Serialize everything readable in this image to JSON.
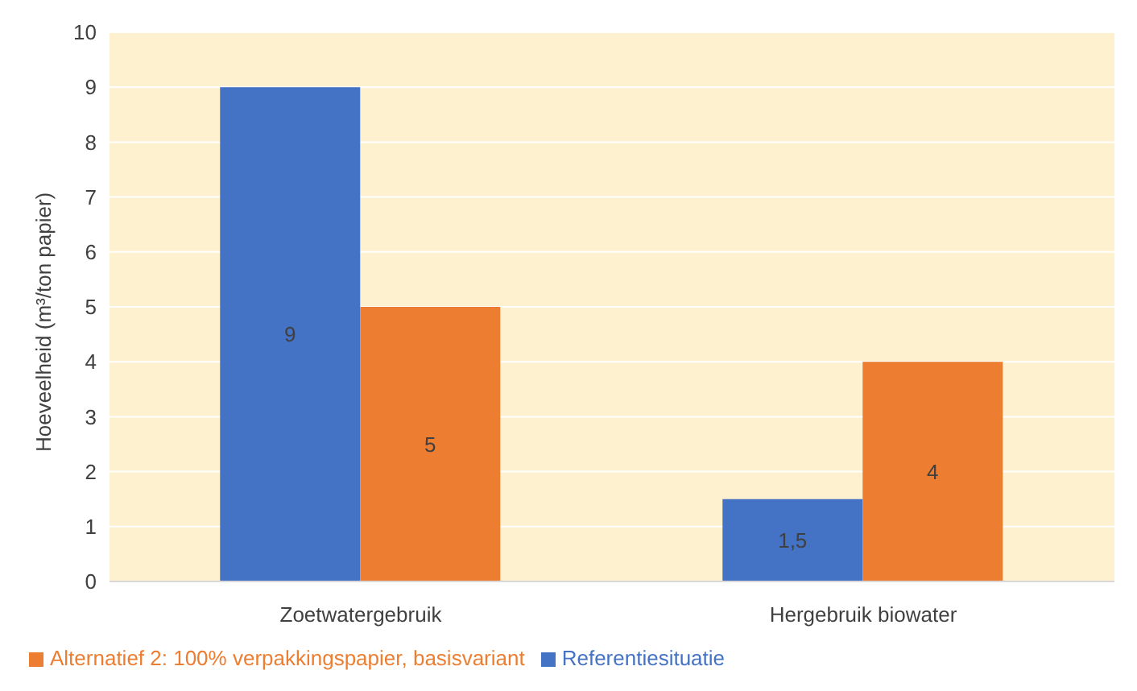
{
  "chart_data": {
    "type": "bar",
    "ylabel": "Hoeveelheid (m³/ton papier)",
    "categories": [
      "Zoetwatergebruik",
      "Hergebruik biowater"
    ],
    "series": [
      {
        "name": "Referentiesituatie",
        "color": "#4472c4",
        "values": [
          9,
          1.5
        ],
        "value_labels": [
          "9",
          "1,5"
        ]
      },
      {
        "name": "Alternatief 2: 100% verpakkingspapier, basisvariant",
        "color": "#ed7d31",
        "values": [
          5,
          4
        ],
        "value_labels": [
          "5",
          "4"
        ]
      }
    ],
    "ylim": [
      0,
      10
    ],
    "yticks": [
      0,
      1,
      2,
      3,
      4,
      5,
      6,
      7,
      8,
      9,
      10
    ],
    "grid": "y",
    "legend": "bottom"
  }
}
